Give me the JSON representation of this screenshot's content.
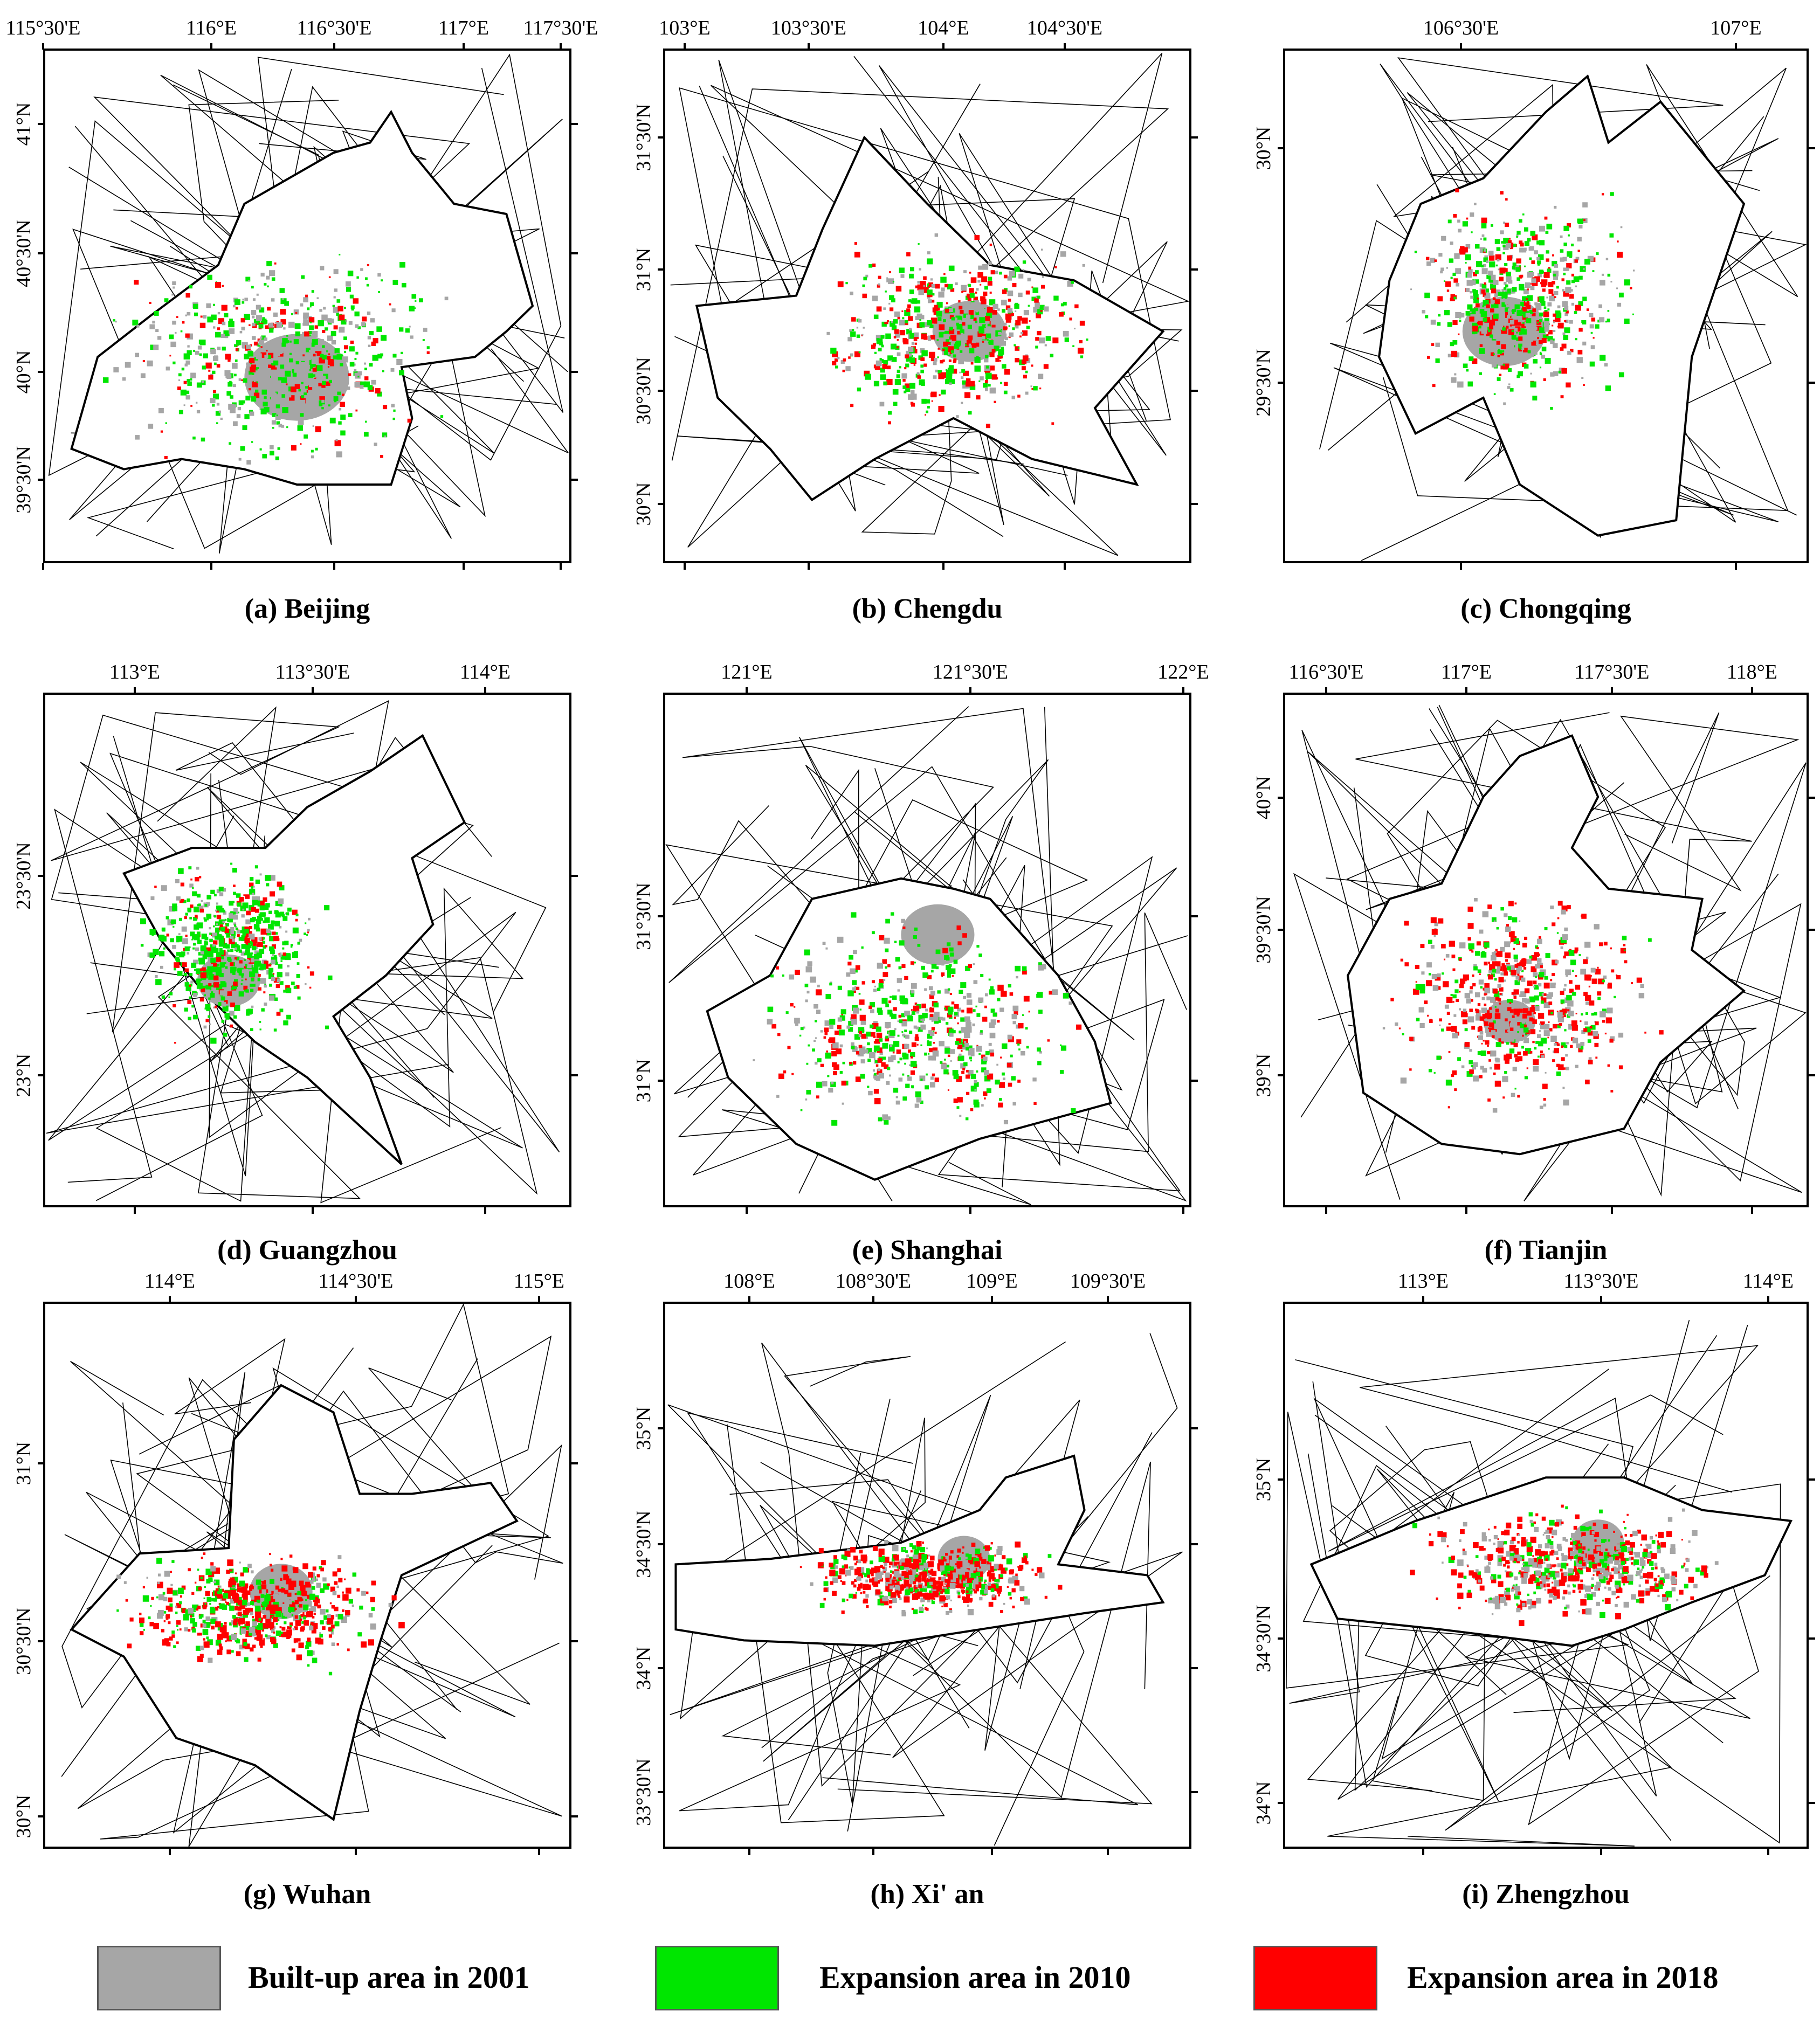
{
  "colors": {
    "built_2001": "#a6a6a6",
    "exp_2010": "#00e600",
    "exp_2018": "#ff0000"
  },
  "panels": [
    {
      "id": "beijing",
      "caption": "(a) Beijing",
      "lon_labels": [
        "115°30'E",
        "116°E",
        "116°30'E",
        "117°E",
        "117°30'E"
      ],
      "lat_labels": [
        "41°N",
        "40°30'N",
        "40°N",
        "39°30'N"
      ]
    },
    {
      "id": "chengdu",
      "caption": "(b) Chengdu",
      "lon_labels": [
        "103°E",
        "103°30'E",
        "104°E",
        "104°30'E"
      ],
      "lat_labels": [
        "31°30'N",
        "31°N",
        "30°30'N",
        "30°N"
      ]
    },
    {
      "id": "chongqing",
      "caption": "(c) Chongqing",
      "lon_labels": [
        "106°30'E",
        "107°E"
      ],
      "lat_labels": [
        "30°N",
        "29°30'N"
      ]
    },
    {
      "id": "guangzhou",
      "caption": "(d) Guangzhou",
      "lon_labels": [
        "113°E",
        "113°30'E",
        "114°E"
      ],
      "lat_labels": [
        "23°30'N",
        "23°N"
      ]
    },
    {
      "id": "shanghai",
      "caption": "(e) Shanghai",
      "lon_labels": [
        "121°E",
        "121°30'E",
        "122°E"
      ],
      "lat_labels": [
        "31°30'N",
        "31°N"
      ]
    },
    {
      "id": "tianjin",
      "caption": "(f) Tianjin",
      "lon_labels": [
        "116°30'E",
        "117°E",
        "117°30'E",
        "118°E"
      ],
      "lat_labels": [
        "40°N",
        "39°30'N",
        "39°N"
      ]
    },
    {
      "id": "wuhan",
      "caption": "(g) Wuhan",
      "lon_labels": [
        "114°E",
        "114°30'E",
        "115°E"
      ],
      "lat_labels": [
        "31°N",
        "30°30'N",
        "30°N"
      ]
    },
    {
      "id": "xian",
      "caption": "(h) Xi' an",
      "lon_labels": [
        "108°E",
        "108°30'E",
        "109°E",
        "109°30'E"
      ],
      "lat_labels": [
        "35°N",
        "34°30'N",
        "34°N",
        "33°30'N"
      ]
    },
    {
      "id": "zhengzhou",
      "caption": "(i) Zhengzhou",
      "lon_labels": [
        "113°E",
        "113°30'E",
        "114°E"
      ],
      "lat_labels": [
        "35°N",
        "34°30'N",
        "34°N"
      ]
    }
  ],
  "legend": [
    {
      "label": "Built-up area in 2001",
      "color": "#a6a6a6"
    },
    {
      "label": "Expansion area in 2010",
      "color": "#00e600"
    },
    {
      "label": "Expansion area in 2018",
      "color": "#ff0000"
    }
  ]
}
